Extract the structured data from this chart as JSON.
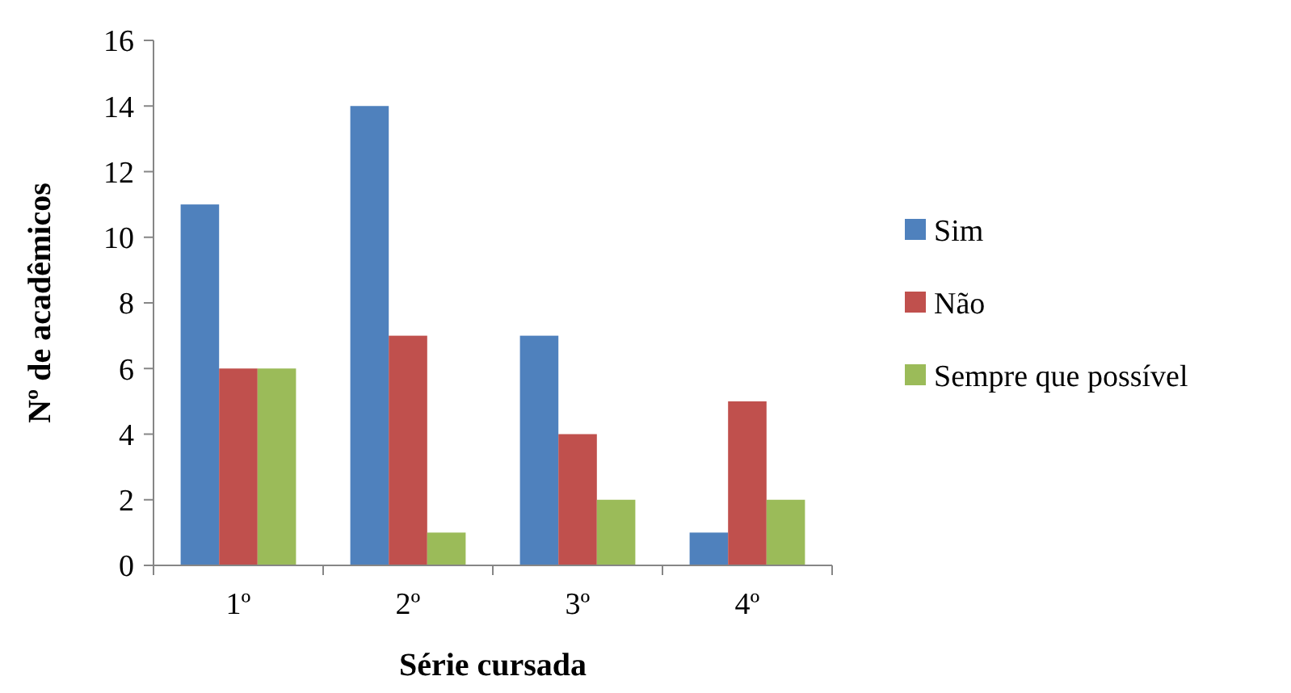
{
  "chart_data": {
    "type": "bar",
    "xlabel": "Série cursada",
    "ylabel": "Nº de acadêmicos",
    "categories": [
      "1º",
      "2º",
      "3º",
      "4º"
    ],
    "series": [
      {
        "name": "Sim",
        "color": "#4f81bd",
        "values": [
          11,
          14,
          7,
          1
        ]
      },
      {
        "name": "Não",
        "color": "#c0504d",
        "values": [
          6,
          7,
          4,
          5
        ]
      },
      {
        "name": "Sempre que possível",
        "color": "#9bbb59",
        "values": [
          6,
          1,
          2,
          2
        ]
      }
    ],
    "ylim": [
      0,
      16
    ],
    "yticks": [
      0,
      2,
      4,
      6,
      8,
      10,
      12,
      14,
      16
    ],
    "grid": false,
    "legend": "right"
  }
}
